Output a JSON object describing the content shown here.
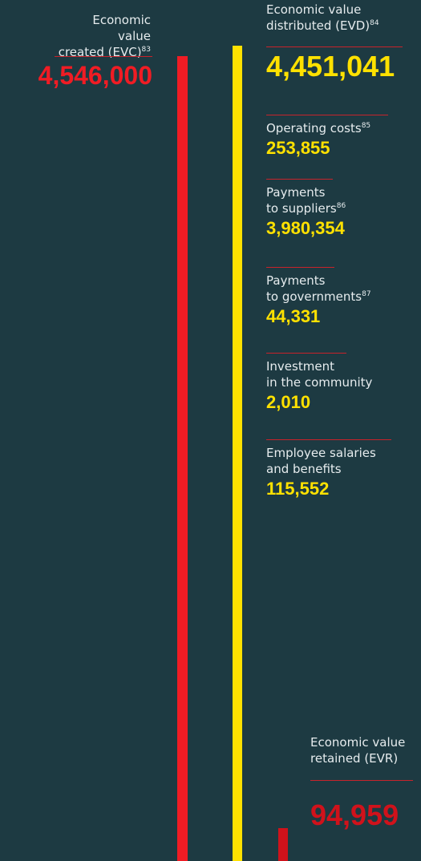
{
  "created": {
    "lines": [
      "Economic value",
      "created (EVC)"
    ],
    "note": "83",
    "amount": "4,546,000"
  },
  "distributed": {
    "lines": [
      "Economic value",
      "distributed (EVD)"
    ],
    "note": "84",
    "amount": "4,451,041"
  },
  "items": [
    {
      "lines": [
        "Operating costs"
      ],
      "note": "85",
      "amount": "253,855"
    },
    {
      "lines": [
        "Payments",
        "to suppliers"
      ],
      "note": "86",
      "amount": "3,980,354"
    },
    {
      "lines": [
        "Payments",
        "to governments"
      ],
      "note": "87",
      "amount": "44,331"
    },
    {
      "lines": [
        "Investment",
        "in the community"
      ],
      "amount": "2,010"
    },
    {
      "lines": [
        "Employee salaries",
        "and benefits"
      ],
      "amount": "115,552"
    }
  ],
  "retained": {
    "lines": [
      "Economic value",
      "retained (EVR)"
    ],
    "amount": "94,959"
  }
}
